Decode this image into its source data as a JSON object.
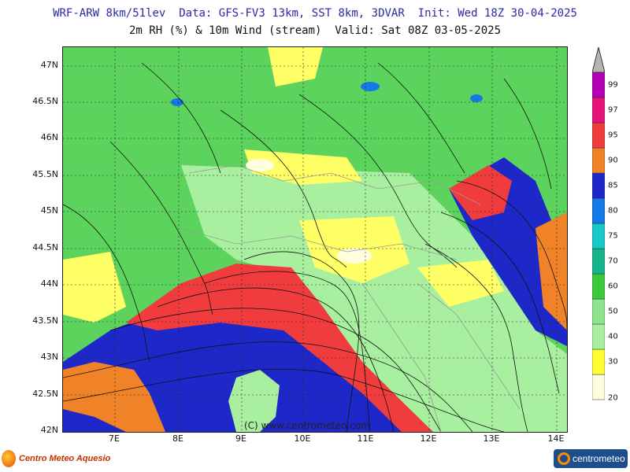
{
  "header": {
    "line1": "WRF-ARW 8km/51lev  Data: GFS-FV3 13km, SST 8km, 3DVAR  Init: Wed 18Z 30-04-2025",
    "line2": "2m RH (%) & 10m Wind (stream)  Valid: Sat 08Z 03-05-2025"
  },
  "axes": {
    "lat_labels": [
      "47N",
      "46.5N",
      "46N",
      "45.5N",
      "45N",
      "44.5N",
      "44N",
      "43.5N",
      "43N",
      "42.5N",
      "42N"
    ],
    "lon_labels": [
      "7E",
      "8E",
      "9E",
      "10E",
      "11E",
      "12E",
      "13E",
      "14E"
    ]
  },
  "colorbar": {
    "labels": [
      "20",
      "30",
      "40",
      "50",
      "60",
      "70",
      "75",
      "80",
      "85",
      "90",
      "95",
      "97",
      "99"
    ],
    "colors": [
      "#ffffe0",
      "#ffff33",
      "#a8f0a0",
      "#8ce48c",
      "#3cc83c",
      "#18b48c",
      "#18c8c8",
      "#1478e6",
      "#1e28c8",
      "#f08228",
      "#f03c3c",
      "#e6147a",
      "#b400b4"
    ],
    "top_arrow_color": "#b4b4b4"
  },
  "copyright": "(C) www.centrometeo.com",
  "logos": {
    "left": "Centro Meteo Aquesio",
    "right": "centrometeo"
  }
}
